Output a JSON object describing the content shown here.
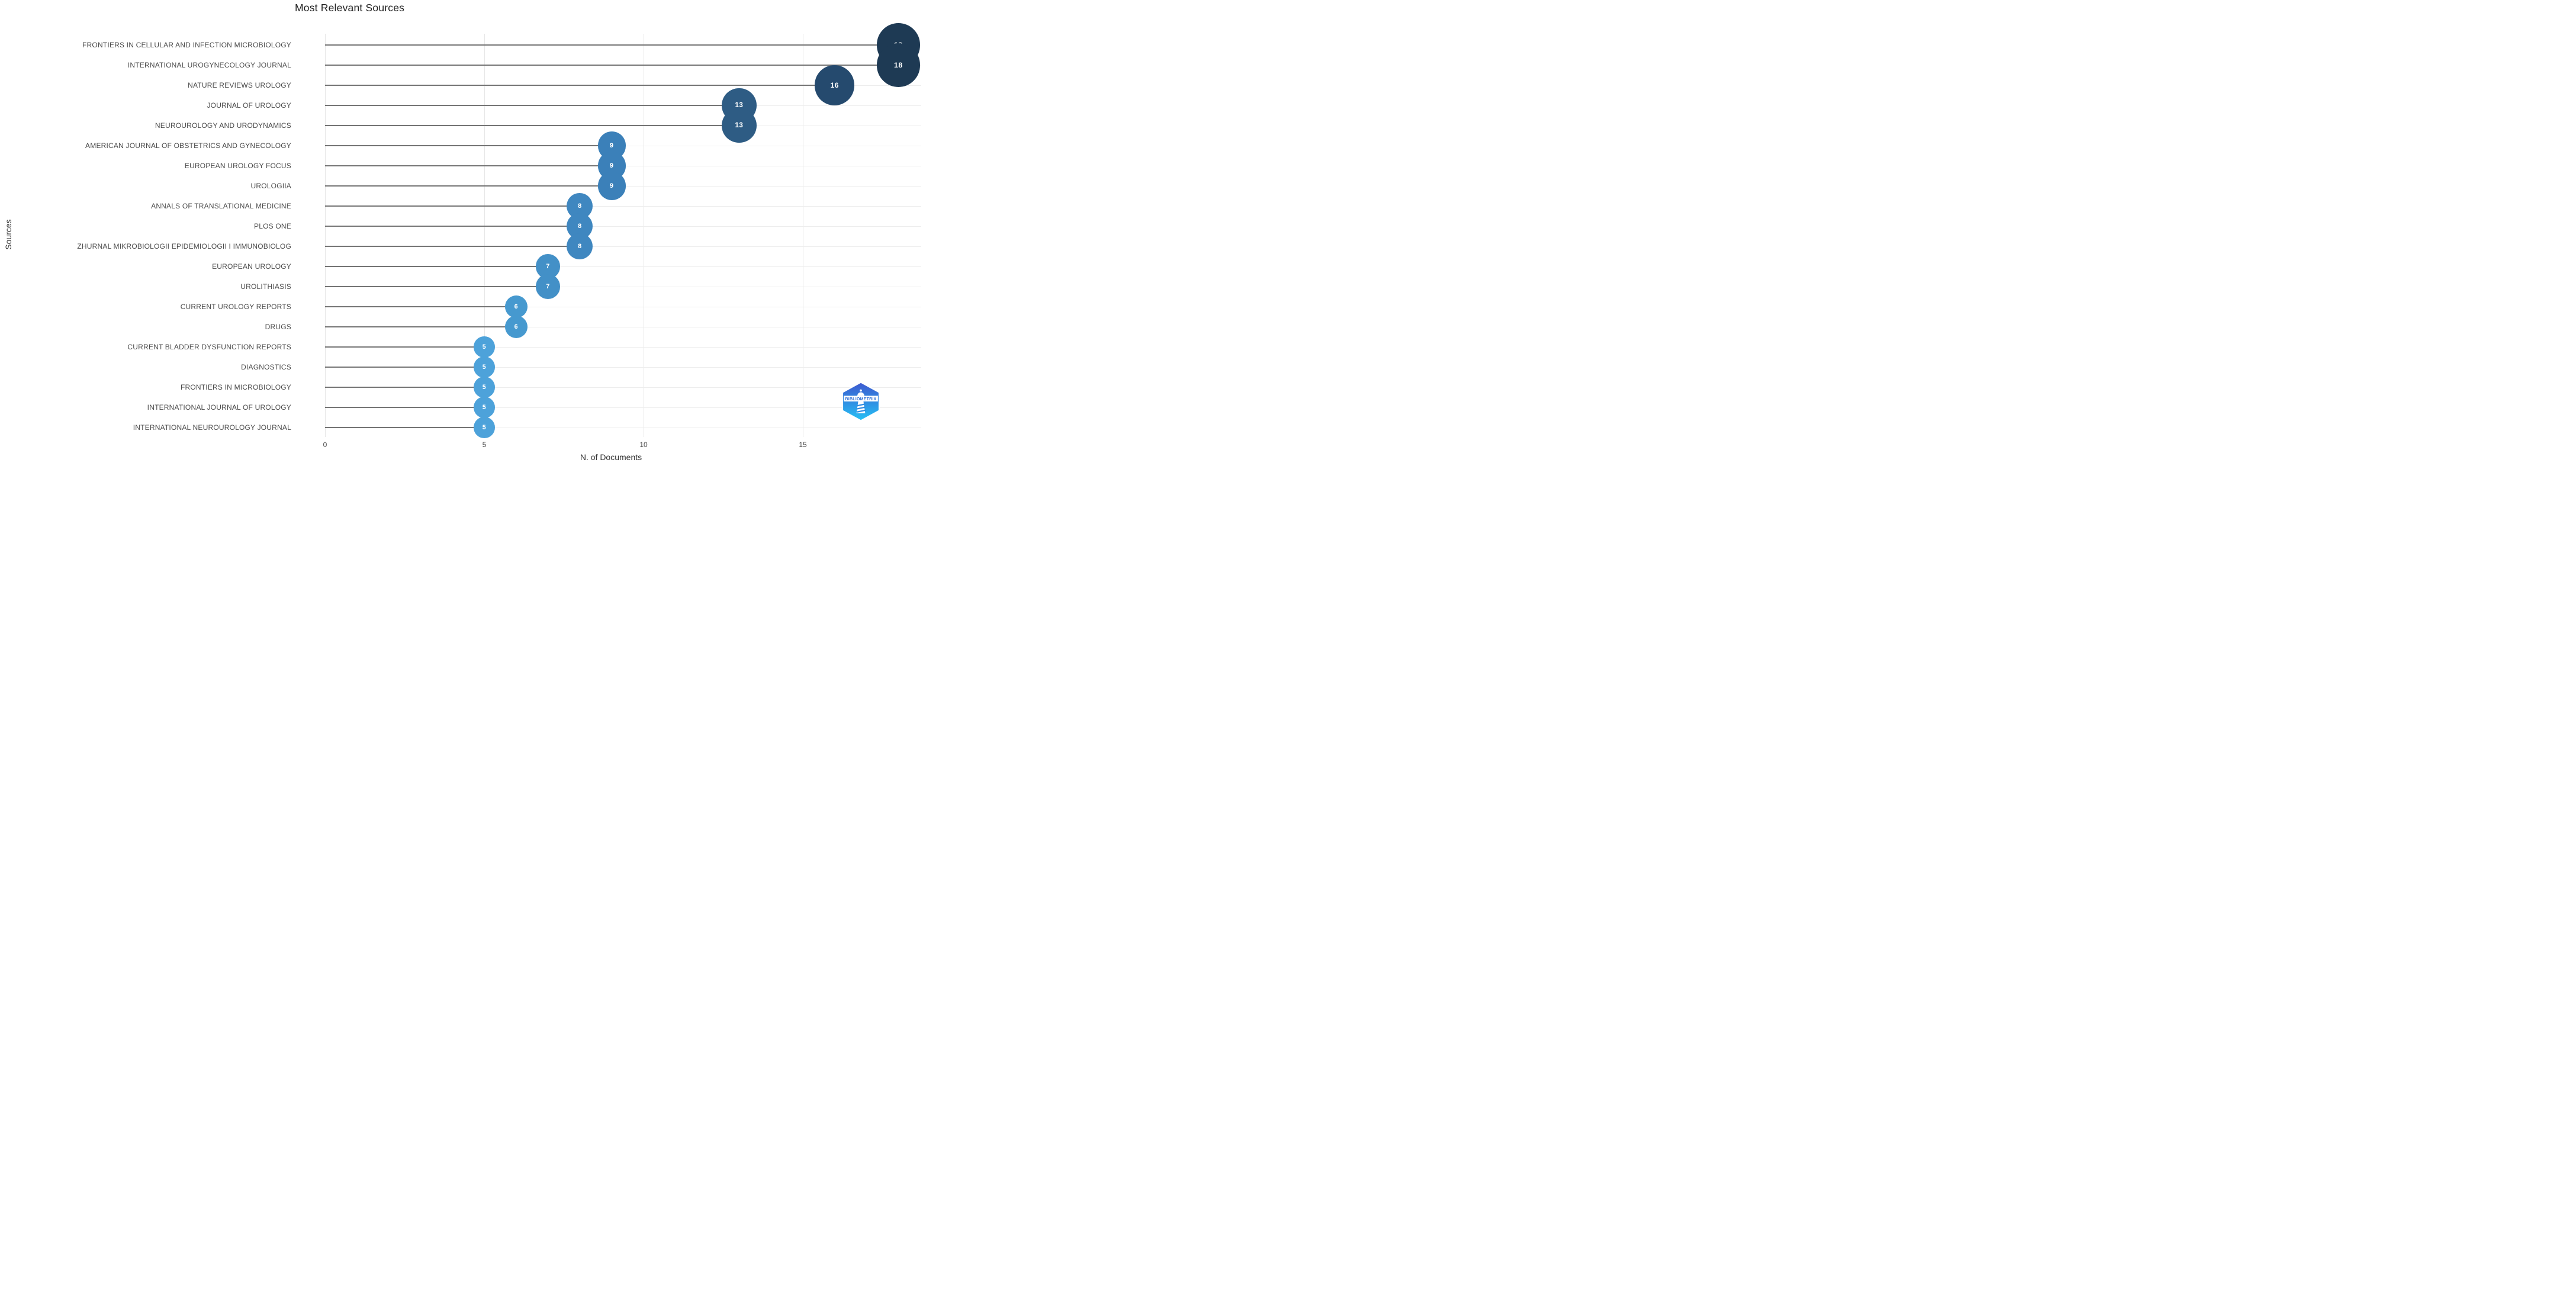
{
  "page": {
    "background": "#ffffff"
  },
  "chart_data": {
    "type": "lollipop",
    "title": "Most Relevant Sources",
    "xlabel": "N. of Documents",
    "ylabel": "Sources",
    "x_ticks": [
      0,
      5,
      10,
      15
    ],
    "xlim": [
      0,
      19
    ],
    "grid": true,
    "legend": false,
    "categories": [
      "FRONTIERS IN CELLULAR AND INFECTION MICROBIOLOGY",
      "INTERNATIONAL UROGYNECOLOGY JOURNAL",
      "NATURE REVIEWS UROLOGY",
      "JOURNAL OF UROLOGY",
      "NEUROUROLOGY AND URODYNAMICS",
      "AMERICAN JOURNAL OF OBSTETRICS AND GYNECOLOGY",
      "EUROPEAN UROLOGY FOCUS",
      "UROLOGIIA",
      "ANNALS OF TRANSLATIONAL MEDICINE",
      "PLOS ONE",
      "ZHURNAL MIKROBIOLOGII EPIDEMIOLOGII I IMMUNOBIOLOG",
      "EUROPEAN UROLOGY",
      "UROLITHIASIS",
      "CURRENT UROLOGY REPORTS",
      "DRUGS",
      "CURRENT BLADDER DYSFUNCTION REPORTS",
      "DIAGNOSTICS",
      "FRONTIERS IN MICROBIOLOGY",
      "INTERNATIONAL JOURNAL OF UROLOGY",
      "INTERNATIONAL NEUROUROLOGY JOURNAL"
    ],
    "values": [
      18,
      18,
      16,
      13,
      13,
      9,
      9,
      9,
      8,
      8,
      8,
      7,
      7,
      6,
      6,
      5,
      5,
      5,
      5,
      5
    ],
    "colors": [
      "#1e3a54",
      "#1e3a54",
      "#254a6e",
      "#2e5c84",
      "#2e5c84",
      "#3b80b9",
      "#3b80b9",
      "#3b80b9",
      "#3f87c0",
      "#3f87c0",
      "#3f87c0",
      "#4390c7",
      "#4390c7",
      "#4699cf",
      "#4699cf",
      "#4da2da",
      "#4da2da",
      "#4da2da",
      "#4da2da",
      "#4da2da"
    ],
    "stem_color": "#757575",
    "gridline_color": "#ededed",
    "axis_text_color": "#4a4a4a",
    "value_label_color": "#ffffff"
  },
  "logo": {
    "text": "BIBLIOMETRIX",
    "gradient_top": "#3f58cf",
    "gradient_mid": "#2f8ce2",
    "gradient_bottom": "#27c2f5"
  }
}
